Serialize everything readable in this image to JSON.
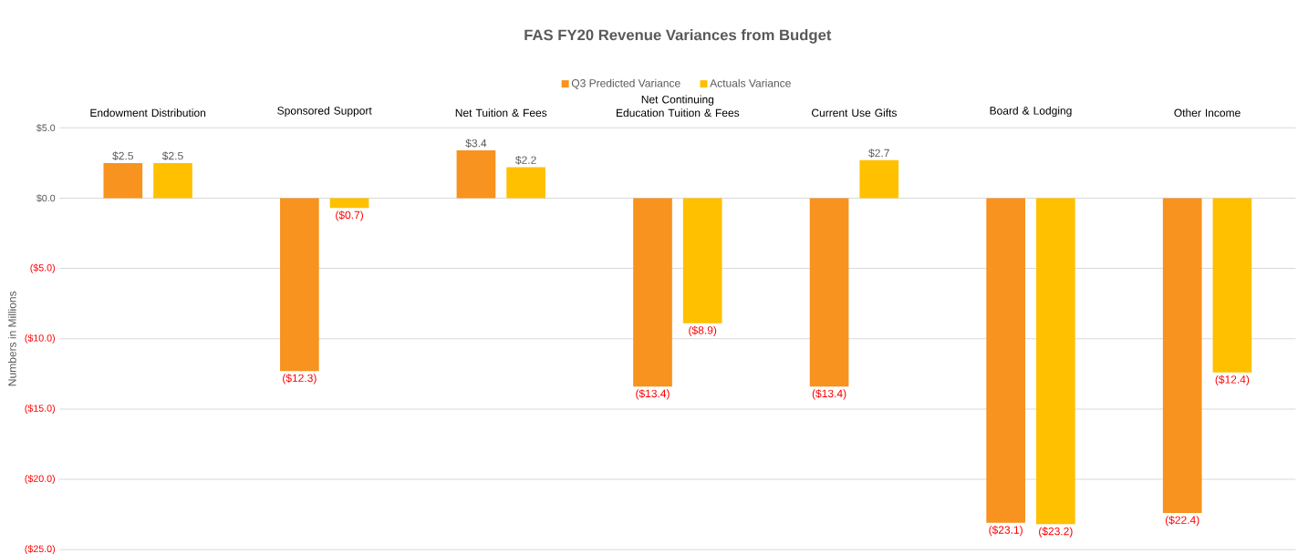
{
  "chart_data": {
    "type": "bar",
    "title": "FAS FY20 Revenue Variances from Budget",
    "ylabel": "Numbers in Millions",
    "categories": [
      "Endowment Distribution",
      "Sponsored Support",
      "Net Tuition & Fees",
      "Net Continuing Education Tuition & Fees",
      "Current Use Gifts",
      "Board & Lodging",
      "Other Income"
    ],
    "series": [
      {
        "name": "Q3 Predicted Variance",
        "color": "#f7931e",
        "values": [
          2.5,
          -12.3,
          3.4,
          -13.4,
          -13.4,
          -23.1,
          -22.4
        ],
        "value_labels": [
          "$2.5",
          "($12.3)",
          "$3.4",
          "($13.4)",
          "($13.4)",
          "($23.1)",
          "($22.4)"
        ]
      },
      {
        "name": "Actuals Variance",
        "color": "#ffc000",
        "values": [
          2.5,
          -0.7,
          2.2,
          -8.9,
          2.7,
          -23.2,
          -12.4
        ],
        "value_labels": [
          "$2.5",
          "($0.7)",
          "$2.2",
          "($8.9)",
          "$2.7",
          "($23.2)",
          "($12.4)"
        ]
      }
    ],
    "ylim": [
      -25,
      5
    ],
    "yticks": [
      {
        "value": 5,
        "label": "$5.0"
      },
      {
        "value": 0,
        "label": "$0.0"
      },
      {
        "value": -5,
        "label": "($5.0)"
      },
      {
        "value": -10,
        "label": "($10.0)"
      },
      {
        "value": -15,
        "label": "($15.0)"
      },
      {
        "value": -20,
        "label": "($20.0)"
      },
      {
        "value": -25,
        "label": "($25.0)"
      }
    ],
    "grid": "y",
    "legend": "top"
  }
}
